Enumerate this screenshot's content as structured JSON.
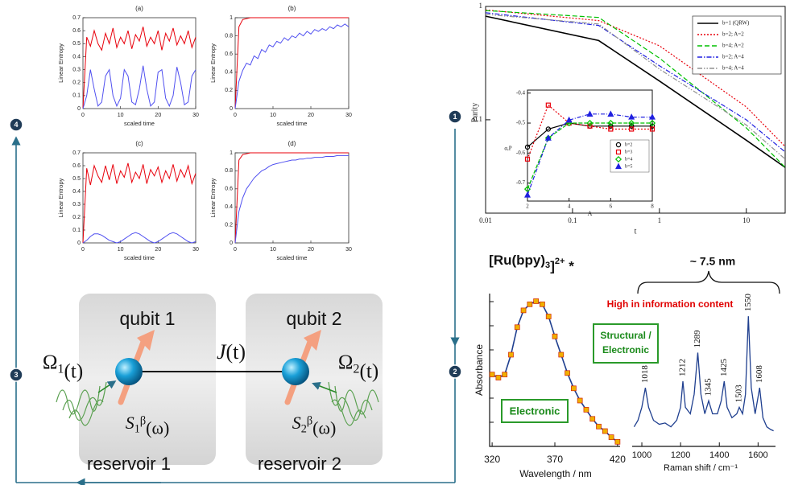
{
  "steps": [
    "1",
    "2",
    "3",
    "4"
  ],
  "entropy": {
    "y_label": "Linear Entropy",
    "x_label": "scaled time",
    "x": [
      0,
      1,
      2,
      3,
      4,
      5,
      6,
      7,
      8,
      9,
      10,
      11,
      12,
      13,
      14,
      15,
      16,
      17,
      18,
      19,
      20,
      21,
      22,
      23,
      24,
      25,
      26,
      27,
      28,
      29,
      30
    ],
    "xlim": [
      0,
      30
    ],
    "xticks": [
      0,
      10,
      20,
      30
    ],
    "panels": [
      {
        "title": "(a)",
        "ylim": [
          0,
          0.7
        ],
        "yticks": [
          0,
          0.1,
          0.2,
          0.3,
          0.4,
          0.5,
          0.6,
          0.7
        ],
        "series": [
          {
            "color": "#e8000b",
            "values": [
              0,
              0.55,
              0.48,
              0.6,
              0.5,
              0.45,
              0.58,
              0.5,
              0.62,
              0.47,
              0.55,
              0.5,
              0.6,
              0.46,
              0.57,
              0.52,
              0.63,
              0.48,
              0.55,
              0.5,
              0.6,
              0.45,
              0.58,
              0.52,
              0.62,
              0.49,
              0.56,
              0.5,
              0.6,
              0.47,
              0.55
            ]
          },
          {
            "color": "#5050f0",
            "values": [
              0,
              0.1,
              0.3,
              0.15,
              0.02,
              0.05,
              0.25,
              0.3,
              0.1,
              0.02,
              0.08,
              0.3,
              0.25,
              0.05,
              0.03,
              0.15,
              0.33,
              0.15,
              0.02,
              0.05,
              0.28,
              0.3,
              0.08,
              0.02,
              0.1,
              0.32,
              0.2,
              0.03,
              0.05,
              0.25,
              0.3
            ]
          }
        ]
      },
      {
        "title": "(b)",
        "ylim": [
          0,
          1
        ],
        "yticks": [
          0,
          0.2,
          0.4,
          0.6,
          0.8,
          1
        ],
        "series": [
          {
            "color": "#e8000b",
            "values": [
              0,
              0.9,
              0.98,
              0.99,
              1,
              1,
              1,
              1,
              1,
              1,
              1,
              1,
              1,
              1,
              1,
              1,
              1,
              1,
              1,
              1,
              1,
              1,
              1,
              1,
              1,
              1,
              1,
              1,
              1,
              1,
              1
            ]
          },
          {
            "color": "#5050f0",
            "values": [
              0,
              0.3,
              0.42,
              0.5,
              0.48,
              0.58,
              0.55,
              0.65,
              0.62,
              0.7,
              0.68,
              0.74,
              0.72,
              0.78,
              0.75,
              0.8,
              0.78,
              0.83,
              0.8,
              0.85,
              0.82,
              0.87,
              0.85,
              0.88,
              0.86,
              0.9,
              0.88,
              0.92,
              0.9,
              0.93,
              0.9
            ]
          }
        ]
      },
      {
        "title": "(c)",
        "ylim": [
          0,
          0.7
        ],
        "yticks": [
          0,
          0.1,
          0.2,
          0.3,
          0.4,
          0.5,
          0.6,
          0.7
        ],
        "series": [
          {
            "color": "#e8000b",
            "values": [
              0,
              0.58,
              0.45,
              0.6,
              0.52,
              0.47,
              0.6,
              0.49,
              0.61,
              0.46,
              0.56,
              0.51,
              0.62,
              0.47,
              0.55,
              0.5,
              0.61,
              0.46,
              0.57,
              0.52,
              0.59,
              0.47,
              0.56,
              0.5,
              0.61,
              0.48,
              0.57,
              0.51,
              0.6,
              0.46,
              0.54
            ]
          },
          {
            "color": "#5050f0",
            "values": [
              0,
              0.02,
              0.05,
              0.07,
              0.07,
              0.06,
              0.04,
              0.02,
              0.01,
              0,
              0.01,
              0.03,
              0.05,
              0.07,
              0.08,
              0.07,
              0.05,
              0.03,
              0.01,
              0,
              0.01,
              0.03,
              0.05,
              0.07,
              0.08,
              0.07,
              0.05,
              0.03,
              0.01,
              0,
              0.01
            ]
          }
        ]
      },
      {
        "title": "(d)",
        "ylim": [
          0,
          1
        ],
        "yticks": [
          0,
          0.2,
          0.4,
          0.6,
          0.8,
          1
        ],
        "series": [
          {
            "color": "#e8000b",
            "values": [
              0,
              0.92,
              0.98,
              0.99,
              1,
              1,
              1,
              1,
              1,
              1,
              1,
              1,
              1,
              1,
              1,
              1,
              1,
              1,
              1,
              1,
              1,
              1,
              1,
              1,
              1,
              1,
              1,
              1,
              1,
              1,
              1
            ]
          },
          {
            "color": "#5050f0",
            "values": [
              0,
              0.35,
              0.5,
              0.6,
              0.66,
              0.72,
              0.76,
              0.8,
              0.82,
              0.85,
              0.87,
              0.88,
              0.89,
              0.9,
              0.91,
              0.92,
              0.92,
              0.93,
              0.93,
              0.94,
              0.94,
              0.95,
              0.95,
              0.95,
              0.96,
              0.96,
              0.96,
              0.97,
              0.97,
              0.97,
              0.97
            ]
          }
        ]
      }
    ]
  },
  "purity": {
    "type": "line",
    "x_label": "t",
    "y_label": "Purity",
    "log_x": true,
    "log_y": true,
    "x": [
      0.01,
      0.2,
      1,
      10,
      28
    ],
    "xlim": [
      0.01,
      28
    ],
    "xticks": [
      0.01,
      0.1,
      1,
      10
    ],
    "ylim": [
      0.015,
      1
    ],
    "yticks": [
      0.1,
      1
    ],
    "series": [
      {
        "name": "b=1 (QRW)",
        "color": "#000000",
        "dash": "solid",
        "values": [
          0.82,
          0.5,
          0.22,
          0.066,
          0.038
        ]
      },
      {
        "name": "b=2; A=2",
        "color": "#e8000b",
        "dash": "dotted",
        "values": [
          0.93,
          0.75,
          0.45,
          0.13,
          0.058
        ]
      },
      {
        "name": "b=4; A=2",
        "color": "#00c000",
        "dash": "dashed",
        "values": [
          0.92,
          0.8,
          0.35,
          0.085,
          0.038
        ]
      },
      {
        "name": "b=2; A=4",
        "color": "#2020e0",
        "dash": "dashdot",
        "values": [
          0.88,
          0.68,
          0.3,
          0.1,
          0.052
        ]
      },
      {
        "name": "b=4; A=4",
        "color": "#909090",
        "dash": "dashdotdot",
        "values": [
          0.85,
          0.7,
          0.28,
          0.09,
          0.045
        ]
      }
    ],
    "inset": {
      "x_label": "A",
      "y_label": "α,P",
      "x": [
        2,
        3,
        4,
        5,
        6,
        7,
        8
      ],
      "xlim": [
        2,
        8
      ],
      "xticks": [
        2,
        4,
        6,
        8
      ],
      "ylim": [
        -0.76,
        -0.39
      ],
      "yticks": [
        -0.4,
        -0.5,
        -0.6,
        -0.7
      ],
      "series": [
        {
          "name": "b=2",
          "color": "#000000",
          "marker": "circle",
          "values": [
            -0.58,
            -0.52,
            -0.5,
            -0.51,
            -0.51,
            -0.51,
            -0.51
          ]
        },
        {
          "name": "b=3",
          "color": "#e8000b",
          "marker": "square",
          "values": [
            -0.62,
            -0.44,
            -0.5,
            -0.51,
            -0.52,
            -0.52,
            -0.52
          ]
        },
        {
          "name": "b=4",
          "color": "#00c000",
          "marker": "diamond",
          "values": [
            -0.72,
            -0.55,
            -0.5,
            -0.5,
            -0.5,
            -0.5,
            -0.5
          ]
        },
        {
          "name": "b=5",
          "color": "#2020e0",
          "marker": "triangle",
          "values": [
            -0.74,
            -0.55,
            -0.49,
            -0.47,
            -0.47,
            -0.48,
            -0.48
          ]
        }
      ]
    }
  },
  "diagram": {
    "coupling": [
      "J",
      "(t)"
    ],
    "qubits": [
      {
        "label": "qubit 1",
        "drive": [
          "Ω",
          "1",
          "(t)"
        ],
        "bath": [
          "S",
          "1",
          "β",
          "(ω)"
        ],
        "reservoir": "reservoir 1"
      },
      {
        "label": "qubit 2",
        "drive": [
          "Ω",
          "2",
          "(t)"
        ],
        "bath": [
          "S",
          "2",
          "β",
          "(ω)"
        ],
        "reservoir": "reservoir 2"
      }
    ]
  },
  "spectra": {
    "formula": [
      "[Ru(bpy)",
      "3",
      "]",
      "2+",
      " *"
    ],
    "width": "~ 7.5 nm",
    "note": "High in information content",
    "absorbance": {
      "y_label": "Absorbance",
      "x_label": "Wavelength  / nm",
      "box_label": "Electronic",
      "color": "#1f3f8f",
      "marker_color": "#f0b000",
      "x": [
        320,
        325,
        330,
        335,
        340,
        345,
        350,
        355,
        360,
        365,
        370,
        375,
        380,
        385,
        390,
        395,
        400,
        405,
        410,
        415,
        420
      ],
      "values": [
        0.47,
        0.45,
        0.47,
        0.6,
        0.78,
        0.89,
        0.93,
        0.95,
        0.93,
        0.85,
        0.72,
        0.6,
        0.48,
        0.38,
        0.3,
        0.24,
        0.18,
        0.13,
        0.1,
        0.06,
        0.03
      ],
      "xlim": [
        318,
        422
      ],
      "xticks": [
        320,
        370,
        420
      ],
      "ylim": [
        0,
        1
      ]
    },
    "raman": {
      "x_label": "Raman shift / cm⁻¹",
      "box_label": [
        "Structural /",
        "Electronic"
      ],
      "color": "#1f3f8f",
      "x": [
        960,
        980,
        1000,
        1018,
        1035,
        1060,
        1090,
        1120,
        1150,
        1180,
        1200,
        1212,
        1225,
        1250,
        1270,
        1289,
        1305,
        1325,
        1345,
        1365,
        1390,
        1410,
        1425,
        1440,
        1465,
        1490,
        1503,
        1520,
        1535,
        1550,
        1565,
        1585,
        1608,
        1625,
        1645,
        1665,
        1680
      ],
      "values": [
        0.15,
        0.2,
        0.3,
        0.45,
        0.3,
        0.2,
        0.17,
        0.18,
        0.15,
        0.2,
        0.3,
        0.5,
        0.3,
        0.25,
        0.4,
        0.72,
        0.4,
        0.25,
        0.35,
        0.25,
        0.25,
        0.35,
        0.5,
        0.3,
        0.22,
        0.25,
        0.3,
        0.25,
        0.4,
        1.0,
        0.45,
        0.25,
        0.45,
        0.22,
        0.15,
        0.13,
        0.12
      ],
      "xlim": [
        950,
        1690
      ],
      "xticks": [
        1000,
        1200,
        1400,
        1600
      ],
      "ylim": [
        0,
        1.05
      ],
      "peaks": [
        1018,
        1212,
        1289,
        1345,
        1425,
        1503,
        1550,
        1608
      ]
    }
  }
}
